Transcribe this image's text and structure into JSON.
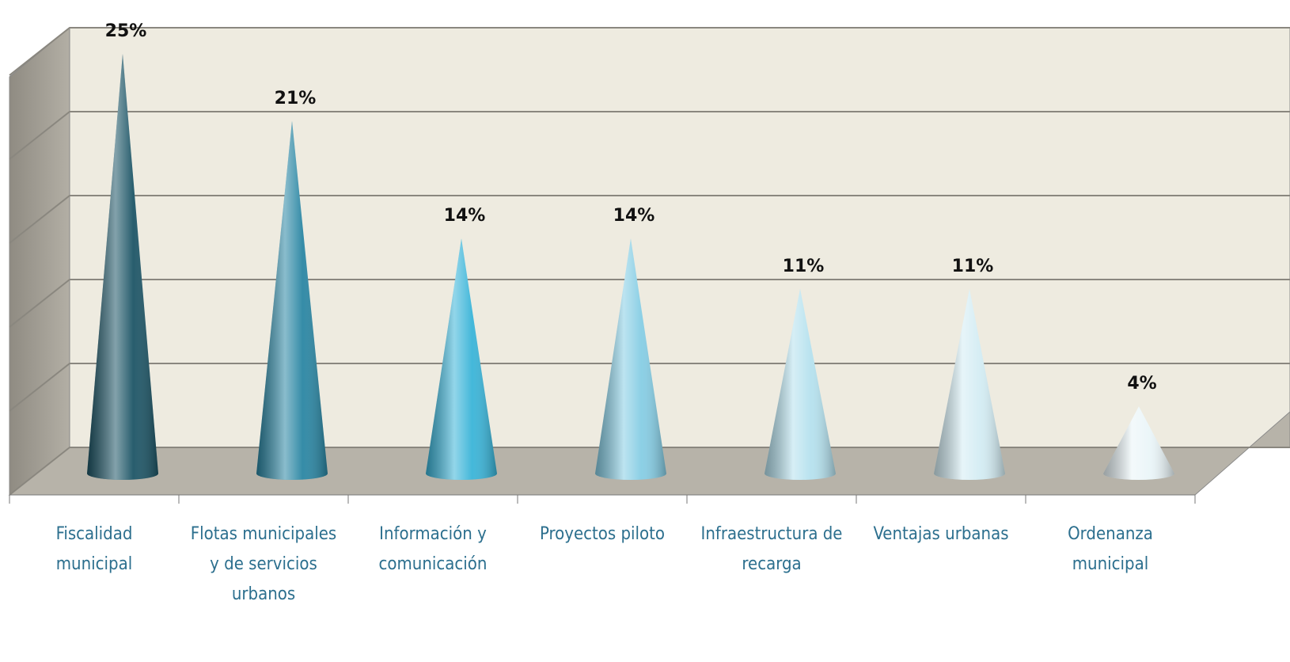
{
  "chart_data": {
    "type": "cone",
    "categories": [
      "Fiscalidad municipal",
      "Flotas municipales y de servicios urbanos",
      "Información y comunicación",
      "Proyectos piloto",
      "Infraestructura de recarga",
      "Ventajas urbanas",
      "Ordenanza municipal"
    ],
    "values": [
      25,
      21,
      14,
      14,
      11,
      11,
      4
    ],
    "value_labels": [
      "25%",
      "21%",
      "14%",
      "14%",
      "11%",
      "11%",
      "4%"
    ],
    "colors": [
      "#1d5566",
      "#2a86a3",
      "#3ab4d8",
      "#86cde4",
      "#b5e1ee",
      "#d3ecf3",
      "#eaf5f8"
    ],
    "ylim": [
      0,
      25
    ],
    "yticks": [
      0,
      5,
      10,
      15,
      20,
      25
    ],
    "grid": true
  }
}
